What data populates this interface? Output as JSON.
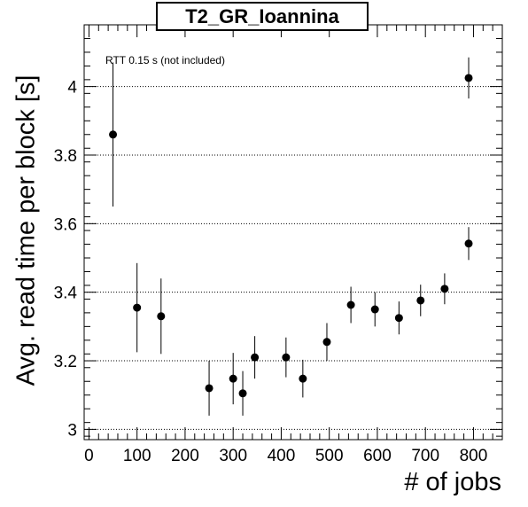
{
  "chart_data": {
    "type": "scatter",
    "title": "T2_GR_Ioannina",
    "annotation": "RTT 0.15 s (not included)",
    "xlabel": "# of jobs",
    "ylabel": "Avg. read time per block [s]",
    "xlim": [
      -10,
      860
    ],
    "ylim": [
      2.97,
      4.18
    ],
    "xticks": [
      0,
      100,
      200,
      300,
      400,
      500,
      600,
      700,
      800
    ],
    "yticks": [
      3,
      3.2,
      3.4,
      3.6,
      3.8,
      4
    ],
    "ytick_labels": [
      "3",
      "3.2",
      "3.4",
      "3.6",
      "3.8",
      "4"
    ],
    "grid": "horizontal dotted",
    "series": [
      {
        "points": [
          {
            "x": 50,
            "y": 3.86,
            "err": 0.21
          },
          {
            "x": 100,
            "y": 3.355,
            "err": 0.13
          },
          {
            "x": 150,
            "y": 3.33,
            "err": 0.11
          },
          {
            "x": 250,
            "y": 3.12,
            "err": 0.08
          },
          {
            "x": 300,
            "y": 3.148,
            "err": 0.075
          },
          {
            "x": 320,
            "y": 3.105,
            "err": 0.065
          },
          {
            "x": 345,
            "y": 3.21,
            "err": 0.062
          },
          {
            "x": 410,
            "y": 3.21,
            "err": 0.058
          },
          {
            "x": 445,
            "y": 3.148,
            "err": 0.055
          },
          {
            "x": 495,
            "y": 3.255,
            "err": 0.055
          },
          {
            "x": 545,
            "y": 3.363,
            "err": 0.053
          },
          {
            "x": 595,
            "y": 3.35,
            "err": 0.05
          },
          {
            "x": 645,
            "y": 3.325,
            "err": 0.048
          },
          {
            "x": 690,
            "y": 3.376,
            "err": 0.046
          },
          {
            "x": 740,
            "y": 3.41,
            "err": 0.045
          },
          {
            "x": 790,
            "y": 3.542,
            "err": 0.048
          },
          {
            "x": 790,
            "y": 4.025,
            "err": 0.06
          }
        ]
      }
    ]
  }
}
